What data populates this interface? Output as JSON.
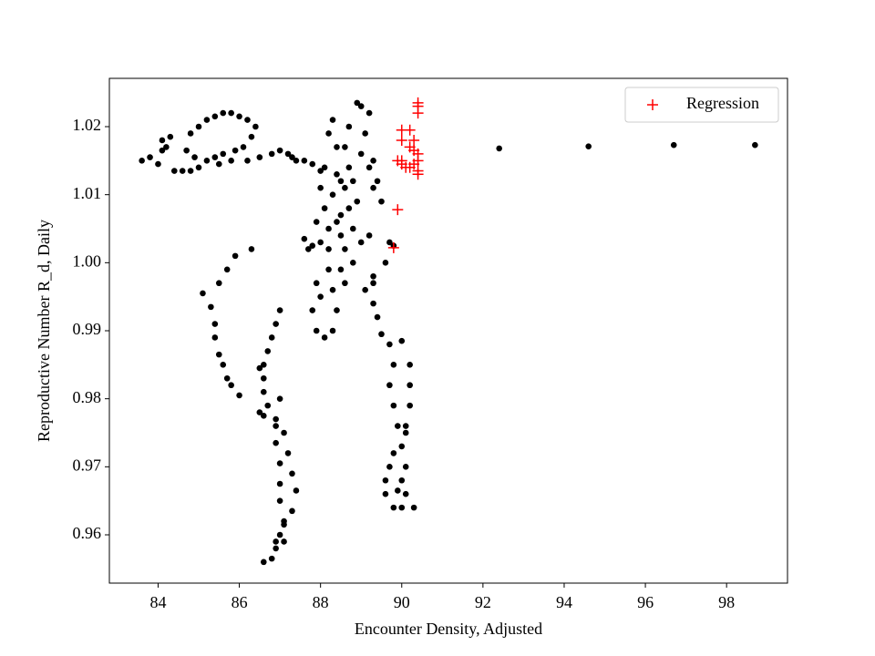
{
  "chart_data": {
    "type": "scatter",
    "xlabel": "Encounter Density, Adjusted",
    "ylabel": "Reproductive Number R_d, Daily",
    "xlim": [
      82.8,
      99.5
    ],
    "ylim": [
      0.9529,
      1.0271
    ],
    "xticks": [
      84,
      86,
      88,
      90,
      92,
      94,
      96,
      98
    ],
    "yticks": [
      0.96,
      0.97,
      0.98,
      0.99,
      {
        "value": 1,
        "label": "1.00"
      },
      1.01,
      1.02
    ],
    "legend": "upper right",
    "series": [
      {
        "color": "#000000",
        "marker": "dot",
        "x": [
          83.6,
          83.8,
          84.0,
          84.1,
          84.1,
          84.3,
          84.2,
          84.4,
          84.6,
          84.8,
          85.0,
          84.9,
          84.7,
          84.8,
          85.0,
          85.2,
          85.4,
          85.6,
          85.8,
          86.0,
          86.2,
          86.4,
          86.3,
          86.1,
          85.9,
          85.6,
          85.4,
          85.2,
          85.5,
          85.8,
          86.2,
          86.5,
          86.8,
          87.0,
          87.3,
          87.6,
          87.8,
          88.0,
          88.2,
          88.3,
          88.4,
          88.1,
          88.0,
          88.1,
          88.2,
          88.0,
          87.8,
          87.9,
          88.0,
          87.8,
          87.9,
          88.1,
          88.3,
          88.4,
          88.3,
          88.5,
          88.6,
          88.8,
          88.7,
          88.6,
          88.7,
          88.6,
          88.7,
          88.9,
          89.0,
          89.2,
          89.1,
          89.0,
          89.2,
          89.3,
          89.5,
          89.4,
          89.3,
          88.5,
          88.3,
          88.4,
          88.2,
          88.5,
          88.8,
          89.0,
          89.2,
          88.9,
          88.8,
          88.4,
          88.2,
          88.6,
          88.5,
          89.7,
          89.8,
          89.6,
          89.3,
          89.1,
          89.3,
          89.4,
          89.5,
          89.3,
          89.7,
          89.8,
          89.7,
          89.8,
          89.9,
          89.8,
          89.7,
          89.6,
          89.6,
          89.8,
          90.0,
          90.3,
          90.1,
          90.0,
          90.1,
          90.0,
          90.1,
          90.2,
          90.2,
          90.2,
          90.0,
          89.9,
          90.1,
          86.3,
          85.9,
          85.7,
          85.5,
          85.1,
          85.3,
          85.4,
          85.4,
          85.5,
          85.6,
          85.7,
          85.8,
          86.0,
          87.0,
          86.9,
          86.8,
          86.7,
          86.6,
          86.6,
          86.5,
          86.6,
          86.5,
          86.6,
          86.7,
          86.9,
          87.0,
          86.9,
          86.9,
          87.1,
          87.2,
          87.3,
          87.4,
          87.3,
          87.1,
          87.0,
          86.9,
          86.8,
          86.6,
          86.9,
          87.0,
          87.0,
          87.0,
          87.1,
          87.1,
          87.2,
          87.4,
          87.6,
          87.7,
          87.9,
          92.4,
          94.6,
          96.7,
          98.7
        ],
        "values": [
          1.015,
          1.0155,
          1.0145,
          1.0165,
          1.018,
          1.0185,
          1.017,
          1.0135,
          1.0135,
          1.0135,
          1.014,
          1.0155,
          1.0165,
          1.019,
          1.02,
          1.021,
          1.0215,
          1.022,
          1.022,
          1.0215,
          1.021,
          1.02,
          1.0185,
          1.017,
          1.0165,
          1.016,
          1.0155,
          1.015,
          1.0145,
          1.015,
          1.015,
          1.0155,
          1.016,
          1.0165,
          1.0155,
          1.015,
          1.0145,
          1.0135,
          1.019,
          1.021,
          1.017,
          1.014,
          1.011,
          1.008,
          1.005,
          1.003,
          1.0025,
          0.997,
          0.995,
          0.993,
          0.99,
          0.989,
          0.99,
          0.993,
          0.996,
          0.999,
          1.002,
          1.005,
          1.008,
          1.011,
          1.014,
          1.017,
          1.02,
          1.0235,
          1.023,
          1.022,
          1.019,
          1.016,
          1.014,
          1.011,
          1.009,
          1.012,
          1.015,
          1.012,
          1.01,
          1.006,
          1.002,
          1.004,
          1.0,
          1.003,
          1.004,
          1.009,
          1.012,
          1.013,
          0.999,
          0.997,
          1.007,
          1.003,
          1.0025,
          1.0,
          0.998,
          0.996,
          0.994,
          0.992,
          0.9895,
          0.997,
          0.988,
          0.985,
          0.982,
          0.979,
          0.976,
          0.972,
          0.97,
          0.968,
          0.966,
          0.964,
          0.964,
          0.964,
          0.966,
          0.968,
          0.97,
          0.973,
          0.976,
          0.979,
          0.982,
          0.985,
          0.9885,
          0.9665,
          0.975,
          1.002,
          1.001,
          0.999,
          0.997,
          0.9955,
          0.9935,
          0.991,
          0.989,
          0.9865,
          0.985,
          0.983,
          0.982,
          0.9805,
          0.993,
          0.991,
          0.989,
          0.987,
          0.985,
          0.983,
          0.9845,
          0.981,
          0.978,
          0.9775,
          0.979,
          0.977,
          0.98,
          0.976,
          0.9735,
          0.975,
          0.972,
          0.969,
          0.9665,
          0.9635,
          0.962,
          0.96,
          0.958,
          0.9565,
          0.956,
          0.959,
          0.965,
          0.9675,
          0.9705,
          0.9615,
          0.959,
          1.016,
          1.015,
          1.0035,
          1.002,
          1.006,
          1.0168,
          1.0171,
          1.0173,
          1.0173
        ]
      },
      {
        "name": "Regression",
        "color": "#ff0000",
        "marker": "plus",
        "x": [
          90.4,
          90.4,
          90.4,
          90.0,
          90.2,
          90.3,
          90.0,
          90.2,
          90.4,
          90.3,
          90.4,
          90.3,
          90.2,
          90.4,
          90.4,
          89.9,
          90.0,
          90.1,
          90.0,
          89.9,
          89.8
        ],
        "values": [
          1.0235,
          1.023,
          1.022,
          1.0195,
          1.0195,
          1.018,
          1.018,
          1.017,
          1.016,
          1.0165,
          1.015,
          1.0145,
          1.014,
          1.0135,
          1.013,
          1.015,
          1.0145,
          1.014,
          1.015,
          1.0078,
          1.0022
        ]
      }
    ]
  }
}
